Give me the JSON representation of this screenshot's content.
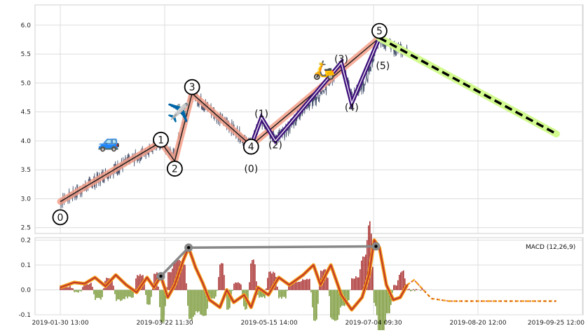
{
  "chart_data": [
    {
      "type": "line",
      "panel": "price",
      "ylim": [
        2.4,
        6.35
      ],
      "yticks": [
        "2.5",
        "3.0",
        "3.5",
        "4.0",
        "4.5",
        "5.0",
        "5.5",
        "6.0"
      ],
      "grid": true,
      "price_series": {
        "anchors": [
          {
            "t": 0.0,
            "v": 2.95
          },
          {
            "t": 0.05,
            "v": 3.12
          },
          {
            "t": 0.14,
            "v": 3.45
          },
          {
            "t": 0.22,
            "v": 3.72
          },
          {
            "t": 0.29,
            "v": 3.98
          },
          {
            "t": 0.33,
            "v": 3.72
          },
          {
            "t": 0.355,
            "v": 4.35
          },
          {
            "t": 0.38,
            "v": 4.82
          },
          {
            "t": 0.43,
            "v": 4.55
          },
          {
            "t": 0.49,
            "v": 4.25
          },
          {
            "t": 0.55,
            "v": 3.92
          },
          {
            "t": 0.58,
            "v": 4.35
          },
          {
            "t": 0.62,
            "v": 4.05
          },
          {
            "t": 0.65,
            "v": 4.15
          },
          {
            "t": 0.7,
            "v": 4.55
          },
          {
            "t": 0.76,
            "v": 4.85
          },
          {
            "t": 0.81,
            "v": 5.35
          },
          {
            "t": 0.84,
            "v": 4.75
          },
          {
            "t": 0.88,
            "v": 5.0
          },
          {
            "t": 0.92,
            "v": 5.78
          },
          {
            "t": 0.96,
            "v": 5.6
          },
          {
            "t": 1.0,
            "v": 5.55
          }
        ]
      },
      "zigzag": [
        {
          "t": 0.0,
          "v": 2.95
        },
        {
          "t": 0.29,
          "v": 3.98
        },
        {
          "t": 0.33,
          "v": 3.65
        },
        {
          "t": 0.38,
          "v": 4.82
        },
        {
          "t": 0.55,
          "v": 3.92
        },
        {
          "t": 0.92,
          "v": 5.78
        }
      ],
      "subwave": [
        {
          "t": 0.55,
          "v": 3.92
        },
        {
          "t": 0.58,
          "v": 4.4
        },
        {
          "t": 0.62,
          "v": 4.0
        },
        {
          "t": 0.81,
          "v": 5.35
        },
        {
          "t": 0.84,
          "v": 4.65
        },
        {
          "t": 0.92,
          "v": 5.78
        }
      ],
      "forecast": [
        {
          "t": 0.92,
          "v": 5.78
        },
        {
          "t": 1.43,
          "v": 4.12
        }
      ],
      "wave_labels": [
        {
          "text": "0",
          "t": 0.0,
          "v": 2.68,
          "circled": true
        },
        {
          "text": "1",
          "t": 0.29,
          "v": 4.02,
          "circled": true
        },
        {
          "text": "2",
          "t": 0.33,
          "v": 3.52,
          "circled": true
        },
        {
          "text": "3",
          "t": 0.38,
          "v": 4.93,
          "circled": true
        },
        {
          "text": "4",
          "t": 0.55,
          "v": 3.9,
          "circled": true
        },
        {
          "text": "5",
          "t": 0.92,
          "v": 5.9,
          "circled": true
        },
        {
          "text": "(0)",
          "t": 0.55,
          "v": 3.52,
          "circled": false
        },
        {
          "text": "(1)",
          "t": 0.58,
          "v": 4.47,
          "circled": false
        },
        {
          "text": "(2)",
          "t": 0.62,
          "v": 3.93,
          "circled": false
        },
        {
          "text": "(3)",
          "t": 0.81,
          "v": 5.42,
          "circled": false
        },
        {
          "text": "(4)",
          "t": 0.84,
          "v": 4.58,
          "circled": false
        },
        {
          "text": "(5)",
          "t": 0.93,
          "v": 5.3,
          "circled": false
        }
      ],
      "emojis": [
        {
          "glyph": "🚙",
          "t": 0.14,
          "v": 3.88
        },
        {
          "glyph": "✈️",
          "t": 0.34,
          "v": 4.38
        },
        {
          "glyph": "🛵",
          "t": 0.76,
          "v": 5.12
        }
      ]
    },
    {
      "type": "bar",
      "panel": "macd",
      "ylim": [
        -0.1,
        0.21
      ],
      "yticks": [
        "-0.1",
        "0.0",
        "0.1",
        "0.2"
      ],
      "grid": true,
      "legend": "MACD (12,26,9)",
      "macd_line": [
        {
          "t": 0.0,
          "v": 0.01
        },
        {
          "t": 0.04,
          "v": 0.03
        },
        {
          "t": 0.07,
          "v": 0.025
        },
        {
          "t": 0.1,
          "v": 0.05
        },
        {
          "t": 0.13,
          "v": 0.015
        },
        {
          "t": 0.16,
          "v": 0.06
        },
        {
          "t": 0.19,
          "v": 0.02
        },
        {
          "t": 0.22,
          "v": -0.01
        },
        {
          "t": 0.25,
          "v": 0.05
        },
        {
          "t": 0.27,
          "v": 0.01
        },
        {
          "t": 0.29,
          "v": 0.055
        },
        {
          "t": 0.31,
          "v": -0.03
        },
        {
          "t": 0.33,
          "v": 0.02
        },
        {
          "t": 0.355,
          "v": 0.12
        },
        {
          "t": 0.37,
          "v": 0.17
        },
        {
          "t": 0.39,
          "v": 0.09
        },
        {
          "t": 0.41,
          "v": 0.03
        },
        {
          "t": 0.43,
          "v": -0.04
        },
        {
          "t": 0.46,
          "v": -0.07
        },
        {
          "t": 0.48,
          "v": 0.0
        },
        {
          "t": 0.5,
          "v": -0.05
        },
        {
          "t": 0.53,
          "v": -0.02
        },
        {
          "t": 0.55,
          "v": -0.07
        },
        {
          "t": 0.57,
          "v": 0.01
        },
        {
          "t": 0.6,
          "v": -0.02
        },
        {
          "t": 0.63,
          "v": 0.05
        },
        {
          "t": 0.66,
          "v": 0.02
        },
        {
          "t": 0.7,
          "v": 0.06
        },
        {
          "t": 0.73,
          "v": 0.1
        },
        {
          "t": 0.75,
          "v": 0.02
        },
        {
          "t": 0.78,
          "v": 0.1
        },
        {
          "t": 0.81,
          "v": -0.02
        },
        {
          "t": 0.84,
          "v": -0.08
        },
        {
          "t": 0.87,
          "v": -0.03
        },
        {
          "t": 0.89,
          "v": 0.06
        },
        {
          "t": 0.905,
          "v": 0.2
        },
        {
          "t": 0.92,
          "v": 0.17
        },
        {
          "t": 0.94,
          "v": 0.02
        },
        {
          "t": 0.96,
          "v": -0.04
        },
        {
          "t": 0.98,
          "v": -0.03
        },
        {
          "t": 1.0,
          "v": 0.02
        }
      ],
      "macd_tail": [
        {
          "t": 1.0,
          "v": 0.02
        },
        {
          "t": 1.02,
          "v": 0.04
        },
        {
          "t": 1.04,
          "v": 0.01
        },
        {
          "t": 1.07,
          "v": -0.035
        },
        {
          "t": 1.12,
          "v": -0.045
        },
        {
          "t": 1.43,
          "v": -0.045
        }
      ],
      "divergence": [
        {
          "t": 0.29,
          "v": 0.055
        },
        {
          "t": 0.37,
          "v": 0.17
        },
        {
          "t": 0.91,
          "v": 0.175
        }
      ]
    }
  ],
  "x_ticks": [
    "2019-01-30 13:00",
    "2019-03-22 11:30",
    "2019-05-15 14:00",
    "2019-07-04 09:30",
    "2019-08-20 12:00",
    "2019-09-25 12:00"
  ],
  "colors": {
    "price": "#4a5570",
    "zigzag_highlight": "#f5a08a",
    "zigzag": "#1a1a1a",
    "subwave": "#3d0f7a",
    "forecast_highlight": "#d2fa8e",
    "forecast": "#000000",
    "macd_highlight": "#f7a11a",
    "macd": "#c0392b",
    "divergence": "#888888",
    "hist_pos": "#a11b1b",
    "hist_neg": "#6b8e23"
  }
}
